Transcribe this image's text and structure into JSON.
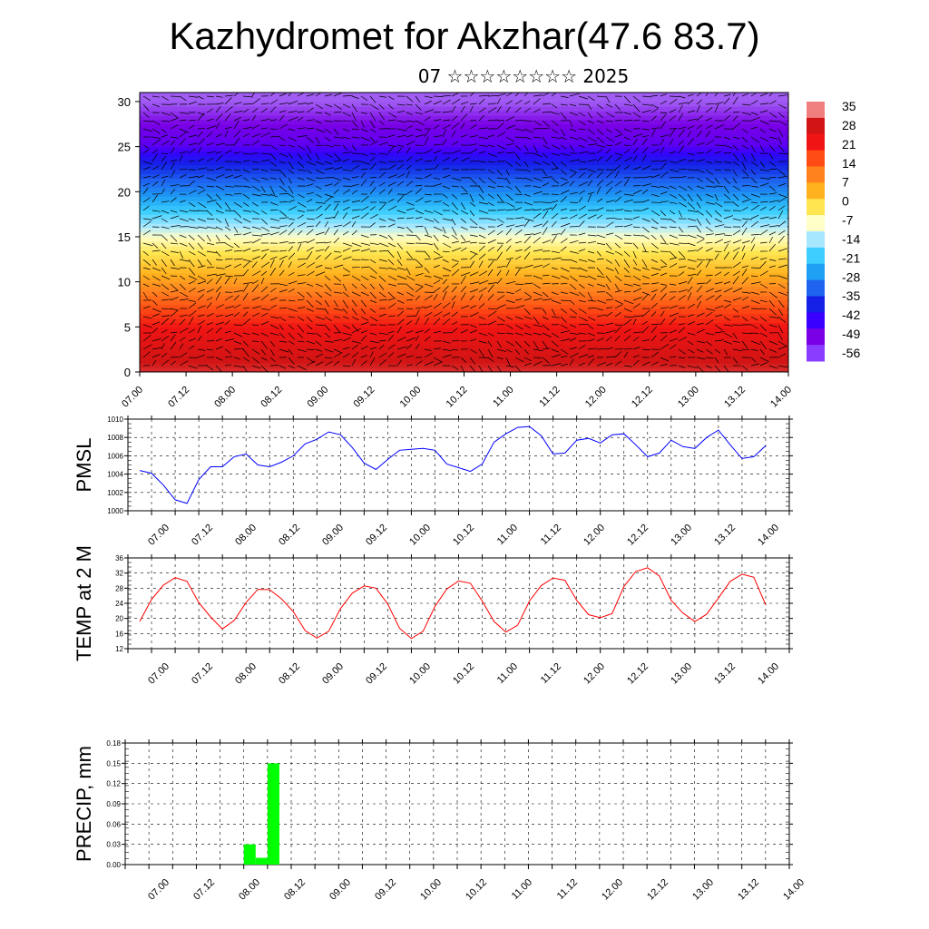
{
  "title": "Kazhydromet for Akzhar(47.6 83.7)",
  "subtitle": "07 ☆☆☆☆☆☆☆☆ 2025",
  "colors": {
    "pmsl_line": "#0000ff",
    "temp_line": "#ff0000",
    "precip_bar": "#00ff00"
  },
  "time_ticks": [
    "07.00",
    "07.12",
    "08.00",
    "08.12",
    "09.00",
    "09.12",
    "10.00",
    "10.12",
    "11.00",
    "11.12",
    "12.00",
    "12.12",
    "13.00",
    "13.12",
    "14.00"
  ],
  "chart_data": [
    {
      "type": "heatmap",
      "title": "",
      "xlabel": "",
      "ylabel": "",
      "x_ticks": [
        "07.00",
        "07.12",
        "08.00",
        "08.12",
        "09.00",
        "09.12",
        "10.00",
        "10.12",
        "11.00",
        "11.12",
        "12.00",
        "12.12",
        "13.00",
        "13.12",
        "14.00"
      ],
      "ylim": [
        0,
        31
      ],
      "y_ticks": [
        0,
        5,
        10,
        15,
        20,
        25,
        30
      ],
      "colorbar_labels": [
        "35",
        "28",
        "21",
        "14",
        "7",
        "0",
        "-7",
        "-14",
        "-21",
        "-28",
        "-35",
        "-42",
        "-49",
        "-56"
      ],
      "colormap": [
        "#c8b8ff",
        "#7a00e6",
        "#3a00ff",
        "#1420e6",
        "#1e64f0",
        "#1fa0f5",
        "#3ccfff",
        "#a8e8ff",
        "#ffffc8",
        "#ffe650",
        "#ffb21e",
        "#ff821e",
        "#ff4b14",
        "#f01414",
        "#d21414",
        "#f08080"
      ],
      "vector_overlay": "wind-barbs",
      "layers": [
        {
          "height": 0,
          "temperature": 30
        },
        {
          "height": 5,
          "temperature": 22
        },
        {
          "height": 10,
          "temperature": 7
        },
        {
          "height": 15,
          "temperature": -10
        },
        {
          "height": 20,
          "temperature": -35
        },
        {
          "height": 25,
          "temperature": -56
        },
        {
          "height": 30,
          "temperature": -60
        }
      ]
    },
    {
      "type": "line",
      "ylabel": "PMSL",
      "ylim": [
        1000,
        1010
      ],
      "y_ticks": [
        "1000",
        "1002",
        "1004",
        "1006",
        "1008",
        "1010"
      ],
      "x_ticks": [
        "07.00",
        "07.12",
        "08.00",
        "08.12",
        "09.00",
        "09.12",
        "10.00",
        "10.12",
        "11.00",
        "11.12",
        "12.00",
        "12.12",
        "13.00",
        "13.12",
        "14.00"
      ],
      "x_hours": [
        3,
        6,
        9,
        12,
        15,
        18,
        21,
        24,
        27,
        30,
        33,
        36,
        39,
        42,
        45,
        48,
        51,
        54,
        57,
        60,
        63,
        66,
        69,
        72,
        75,
        78,
        81,
        84,
        87,
        90,
        93,
        96,
        99,
        102,
        105,
        108,
        111,
        114,
        117,
        120,
        123,
        126,
        129,
        132,
        135,
        138,
        141,
        144,
        147,
        150,
        153,
        156,
        159,
        162
      ],
      "values": [
        1004.4,
        1004.1,
        1002.8,
        1001.2,
        1000.8,
        1003.4,
        1004.8,
        1004.8,
        1005.9,
        1006.2,
        1005.0,
        1004.8,
        1005.3,
        1006.0,
        1007.3,
        1007.8,
        1008.6,
        1008.3,
        1006.9,
        1005.2,
        1004.5,
        1005.6,
        1006.6,
        1006.7,
        1006.8,
        1006.6,
        1005.1,
        1004.7,
        1004.3,
        1005.1,
        1007.5,
        1008.4,
        1009.1,
        1009.2,
        1008.2,
        1006.2,
        1006.3,
        1007.7,
        1007.9,
        1007.4,
        1008.3,
        1008.4,
        1007.2,
        1005.9,
        1006.3,
        1007.7,
        1007.0,
        1006.8,
        1008.0,
        1008.8,
        1007.2,
        1005.7,
        1005.9,
        1007.1
      ]
    },
    {
      "type": "line",
      "ylabel": "TEMP at 2 M",
      "ylim": [
        12,
        36
      ],
      "y_ticks": [
        "12",
        "16",
        "20",
        "24",
        "28",
        "32",
        "36"
      ],
      "x_ticks": [
        "07.00",
        "07.12",
        "08.00",
        "08.12",
        "09.00",
        "09.12",
        "10.00",
        "10.12",
        "11.00",
        "11.12",
        "12.00",
        "12.12",
        "13.00",
        "13.12",
        "14.00"
      ],
      "x_hours": [
        3,
        6,
        9,
        12,
        15,
        18,
        21,
        24,
        27,
        30,
        33,
        36,
        39,
        42,
        45,
        48,
        51,
        54,
        57,
        60,
        63,
        66,
        69,
        72,
        75,
        78,
        81,
        84,
        87,
        90,
        93,
        96,
        99,
        102,
        105,
        108,
        111,
        114,
        117,
        120,
        123,
        126,
        129,
        132,
        135,
        138,
        141,
        144,
        147,
        150,
        153,
        156,
        159,
        162
      ],
      "values": [
        19.2,
        25.0,
        28.8,
        30.8,
        29.8,
        24.2,
        20.4,
        17.2,
        19.5,
        24.2,
        27.7,
        27.6,
        25.2,
        21.8,
        16.8,
        14.8,
        16.6,
        22.6,
        26.7,
        28.6,
        28.0,
        23.8,
        17.4,
        14.7,
        16.6,
        23.2,
        27.8,
        29.9,
        29.3,
        24.6,
        19.2,
        16.4,
        18.2,
        24.6,
        28.7,
        30.7,
        30.1,
        24.8,
        21.0,
        20.2,
        21.3,
        28.5,
        32.4,
        33.4,
        31.2,
        24.8,
        21.4,
        19.2,
        21.1,
        25.4,
        29.8,
        31.7,
        30.9,
        23.6
      ]
    },
    {
      "type": "bar",
      "ylabel": "PRECIP, mm",
      "ylim": [
        0,
        0.18
      ],
      "y_ticks": [
        "0.00",
        "0.03",
        "0.06",
        "0.09",
        "0.12",
        "0.15",
        "0.18"
      ],
      "x_ticks": [
        "07.00",
        "07.12",
        "08.00",
        "08.12",
        "09.00",
        "09.12",
        "10.00",
        "10.12",
        "11.00",
        "11.12",
        "12.00",
        "12.12",
        "13.00",
        "13.12",
        "14.00"
      ],
      "bars": [
        {
          "start_hour": 30,
          "end_hour": 33,
          "value": 0.03
        },
        {
          "start_hour": 33,
          "end_hour": 36,
          "value": 0.01
        },
        {
          "start_hour": 36,
          "end_hour": 39,
          "value": 0.15
        }
      ]
    }
  ]
}
